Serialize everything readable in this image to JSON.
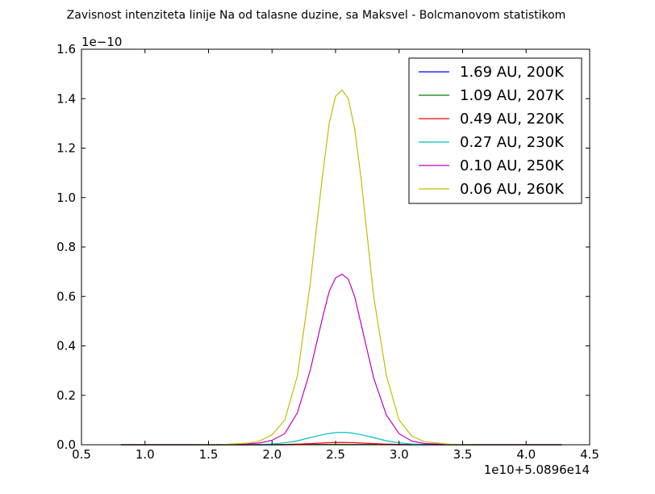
{
  "chart_data": {
    "type": "line",
    "title": "Zavisnost intenziteta linije Na od talasne duzine, sa Maksvel - Bolcmanovom statistikom",
    "xlabel": "",
    "ylabel": "",
    "x_offset_label": "1e10+5.0896e14",
    "y_offset_label": "1e−10",
    "xlim": [
      0.5,
      4.5
    ],
    "ylim": [
      0.0,
      1.6
    ],
    "x_ticks": [
      0.5,
      1.0,
      1.5,
      2.0,
      2.5,
      3.0,
      3.5,
      4.0,
      4.5
    ],
    "x_tick_labels": [
      "0.5",
      "1.0",
      "1.5",
      "2.0",
      "2.5",
      "3.0",
      "3.5",
      "4.0",
      "4.5"
    ],
    "y_ticks": [
      0.0,
      0.2,
      0.4,
      0.6,
      0.8,
      1.0,
      1.2,
      1.4,
      1.6
    ],
    "y_tick_labels": [
      "0.0",
      "0.2",
      "0.4",
      "0.6",
      "0.8",
      "1.0",
      "1.2",
      "1.4",
      "1.6"
    ],
    "x": [
      0.81,
      1.0,
      1.2,
      1.4,
      1.6,
      1.8,
      1.9,
      2.0,
      2.1,
      2.2,
      2.3,
      2.35,
      2.4,
      2.45,
      2.5,
      2.55,
      2.6,
      2.65,
      2.7,
      2.75,
      2.8,
      2.9,
      3.0,
      3.1,
      3.2,
      3.4,
      3.6,
      3.8,
      4.0,
      4.28
    ],
    "grid": false,
    "legend_position": "top-right",
    "series": [
      {
        "name": "1.69 AU, 200K",
        "color": "#0000ff",
        "values": [
          0,
          0,
          0,
          0,
          0,
          0,
          0,
          0,
          0.0001,
          0.0002,
          0.0003,
          0.0004,
          0.0004,
          0.0005,
          0.0005,
          0.0005,
          0.0005,
          0.0005,
          0.0004,
          0.0004,
          0.0003,
          0.0002,
          0.0001,
          0,
          0,
          0,
          0,
          0,
          0,
          0
        ]
      },
      {
        "name": "1.09 AU, 207K",
        "color": "#008000",
        "values": [
          0,
          0,
          0,
          0,
          0,
          0,
          0,
          0.0001,
          0.0002,
          0.0004,
          0.0006,
          0.0008,
          0.0009,
          0.001,
          0.0011,
          0.0011,
          0.0011,
          0.001,
          0.0009,
          0.0008,
          0.0006,
          0.0004,
          0.0002,
          0.0001,
          0,
          0,
          0,
          0,
          0,
          0
        ]
      },
      {
        "name": "0.49 AU, 220K",
        "color": "#ff0000",
        "values": [
          0,
          0,
          0,
          0,
          0,
          0,
          0,
          0.0005,
          0.0012,
          0.0025,
          0.0045,
          0.0058,
          0.007,
          0.0082,
          0.009,
          0.0093,
          0.009,
          0.0082,
          0.007,
          0.0058,
          0.0045,
          0.0025,
          0.0012,
          0.0005,
          0.0002,
          0,
          0,
          0,
          0,
          0
        ]
      },
      {
        "name": "0.27 AU, 230K",
        "color": "#00bfbf",
        "values": [
          0,
          0,
          0,
          0,
          0,
          0.0003,
          0.001,
          0.003,
          0.008,
          0.016,
          0.029,
          0.035,
          0.041,
          0.046,
          0.049,
          0.05,
          0.049,
          0.046,
          0.041,
          0.035,
          0.029,
          0.016,
          0.008,
          0.003,
          0.001,
          0,
          0,
          0,
          0,
          0
        ]
      },
      {
        "name": "0.10 AU, 250K",
        "color": "#bf00bf",
        "values": [
          0,
          0,
          0,
          0,
          0.0005,
          0.003,
          0.007,
          0.018,
          0.045,
          0.13,
          0.3,
          0.41,
          0.52,
          0.62,
          0.675,
          0.69,
          0.67,
          0.6,
          0.49,
          0.38,
          0.27,
          0.12,
          0.045,
          0.015,
          0.005,
          0.001,
          0,
          0,
          0,
          0
        ]
      },
      {
        "name": "0.06 AU, 260K",
        "color": "#bfbf00",
        "values": [
          0,
          0,
          0,
          0,
          0.001,
          0.006,
          0.015,
          0.04,
          0.1,
          0.28,
          0.65,
          0.88,
          1.1,
          1.3,
          1.41,
          1.435,
          1.4,
          1.28,
          1.08,
          0.84,
          0.6,
          0.28,
          0.1,
          0.035,
          0.012,
          0.002,
          0,
          0,
          0,
          0
        ]
      }
    ]
  }
}
